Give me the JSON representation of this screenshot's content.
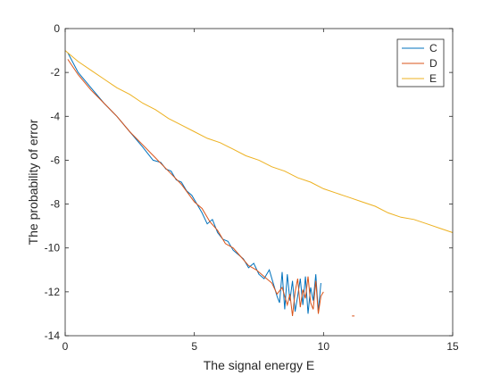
{
  "chart_data": {
    "type": "line",
    "title": "",
    "xlabel": "The signal energy E",
    "ylabel": "The probability of error",
    "xlim": [
      0,
      15
    ],
    "ylim": [
      -14,
      0
    ],
    "xticks": [
      0,
      5,
      10,
      15
    ],
    "yticks": [
      0,
      -2,
      -4,
      -6,
      -8,
      -10,
      -12,
      -14
    ],
    "xtick_labels": [
      "0",
      "5",
      "10",
      "15"
    ],
    "ytick_labels": [
      "0",
      "-2",
      "-4",
      "-6",
      "-8",
      "-10",
      "-12",
      "-14"
    ],
    "grid": false,
    "legend_position": "top-right",
    "series": [
      {
        "name": "C",
        "color": "#0072BD",
        "x": [
          0.1,
          0.5,
          1.0,
          1.5,
          2.0,
          2.5,
          3.0,
          3.4,
          3.7,
          3.9,
          4.1,
          4.3,
          4.5,
          4.7,
          4.9,
          5.1,
          5.3,
          5.5,
          5.7,
          5.9,
          6.1,
          6.3,
          6.5,
          6.7,
          6.9,
          7.1,
          7.3,
          7.5,
          7.7,
          7.9,
          8.1,
          8.2,
          8.3,
          8.4,
          8.5,
          8.6,
          8.7,
          8.8,
          8.9,
          9.0,
          9.1,
          9.2,
          9.3,
          9.4,
          9.5,
          9.6,
          9.7,
          9.8,
          9.9
        ],
        "y": [
          -1.1,
          -2.0,
          -2.7,
          -3.4,
          -4.0,
          -4.7,
          -5.4,
          -6.0,
          -6.1,
          -6.4,
          -6.5,
          -6.9,
          -7.0,
          -7.4,
          -7.6,
          -8.0,
          -8.4,
          -8.9,
          -8.7,
          -9.3,
          -9.6,
          -9.7,
          -10.1,
          -10.3,
          -10.5,
          -10.9,
          -10.7,
          -11.2,
          -11.4,
          -11.0,
          -11.8,
          -12.2,
          -12.5,
          -11.1,
          -12.8,
          -11.2,
          -12.4,
          -11.5,
          -12.9,
          -12.2,
          -11.4,
          -12.6,
          -11.3,
          -13.0,
          -11.8,
          -12.4,
          -11.2,
          -12.9,
          -11.6
        ]
      },
      {
        "name": "D",
        "color": "#D95319",
        "x": [
          0.1,
          0.5,
          1.0,
          1.5,
          2.0,
          2.5,
          3.0,
          3.5,
          4.0,
          4.5,
          5.0,
          5.3,
          5.6,
          5.9,
          6.2,
          6.5,
          6.8,
          7.1,
          7.4,
          7.7,
          8.0,
          8.2,
          8.4,
          8.6,
          8.7,
          8.8,
          8.9,
          9.0,
          9.1,
          9.2,
          9.3,
          9.4,
          9.5,
          9.6,
          9.7,
          9.8,
          9.9,
          10.0
        ],
        "y": [
          -1.4,
          -2.1,
          -2.8,
          -3.4,
          -4.0,
          -4.7,
          -5.3,
          -5.9,
          -6.5,
          -7.1,
          -7.9,
          -8.2,
          -8.8,
          -9.2,
          -9.8,
          -10.0,
          -10.4,
          -10.8,
          -11.0,
          -11.3,
          -11.6,
          -12.1,
          -11.8,
          -12.6,
          -12.1,
          -13.1,
          -12.0,
          -11.4,
          -12.7,
          -11.9,
          -12.3,
          -11.3,
          -12.5,
          -12.8,
          -11.5,
          -13.0,
          -12.2,
          -12.0
        ]
      },
      {
        "name": "E",
        "color": "#EDB120",
        "x": [
          0,
          0.5,
          1,
          1.5,
          2,
          2.5,
          3,
          3.5,
          4,
          4.5,
          5,
          5.5,
          6,
          6.5,
          7,
          7.5,
          8,
          8.5,
          9,
          9.5,
          10,
          10.5,
          11,
          11.5,
          12,
          12.5,
          13,
          13.5,
          14,
          14.5,
          15
        ],
        "y": [
          -1.0,
          -1.5,
          -1.9,
          -2.3,
          -2.7,
          -3.0,
          -3.4,
          -3.7,
          -4.1,
          -4.4,
          -4.7,
          -5.0,
          -5.2,
          -5.5,
          -5.8,
          -6.0,
          -6.3,
          -6.5,
          -6.8,
          -7.0,
          -7.3,
          -7.5,
          -7.7,
          -7.9,
          -8.1,
          -8.4,
          -8.6,
          -8.7,
          -8.9,
          -9.1,
          -9.3
        ]
      }
    ],
    "annotations": [
      {
        "series": "D",
        "x": [
          11.1,
          11.2
        ],
        "y": [
          -13.1,
          -13.1
        ]
      }
    ]
  }
}
